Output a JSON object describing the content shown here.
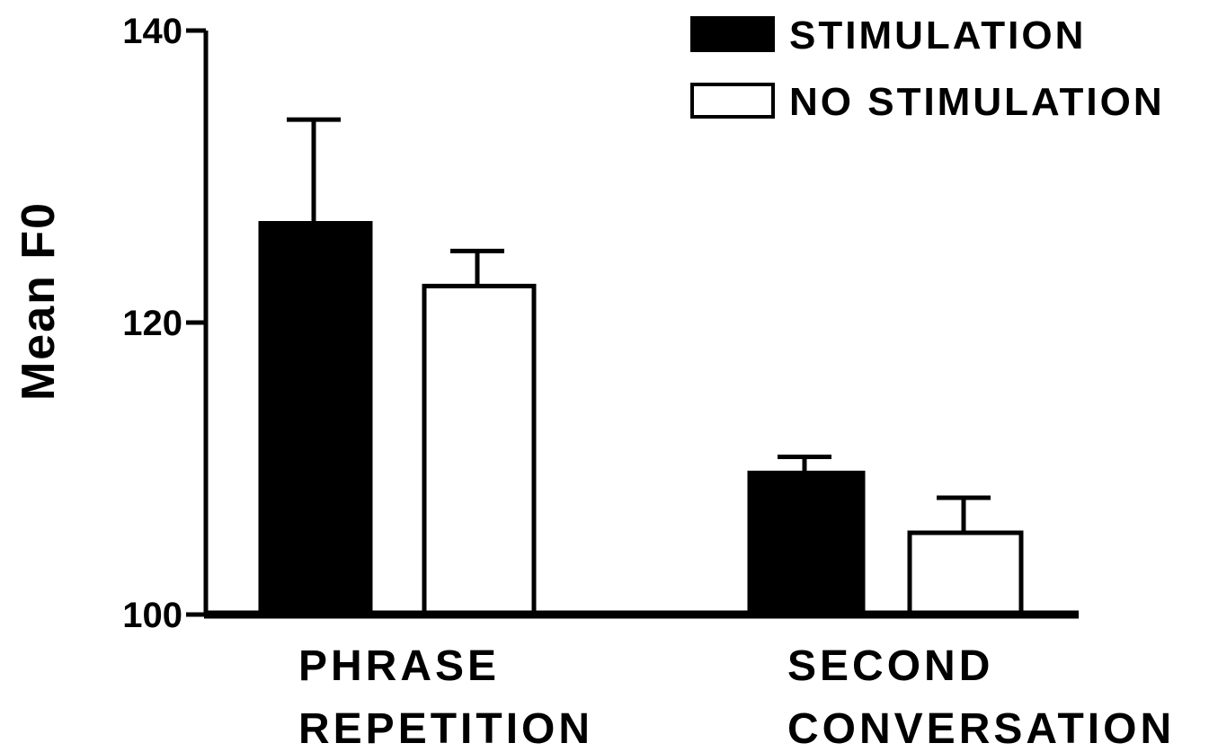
{
  "chart_data": {
    "type": "bar",
    "title": "",
    "xlabel": "",
    "ylabel": "Mean F0",
    "ylim": [
      100,
      140
    ],
    "yticks": [
      100,
      120,
      140
    ],
    "categories": [
      [
        "PHRASE",
        "REPETITION"
      ],
      [
        "SECOND",
        "CONVERSATION"
      ]
    ],
    "series": [
      {
        "name": "STIMULATION",
        "values": [
          126.8,
          109.7
        ],
        "errors": [
          7.1,
          1.1
        ],
        "fill": "#000000"
      },
      {
        "name": "NO STIMULATION",
        "values": [
          122.5,
          105.6
        ],
        "errors": [
          2.4,
          2.4
        ],
        "fill": "#ffffff"
      }
    ],
    "legend_position": "top-right",
    "grid": false
  }
}
